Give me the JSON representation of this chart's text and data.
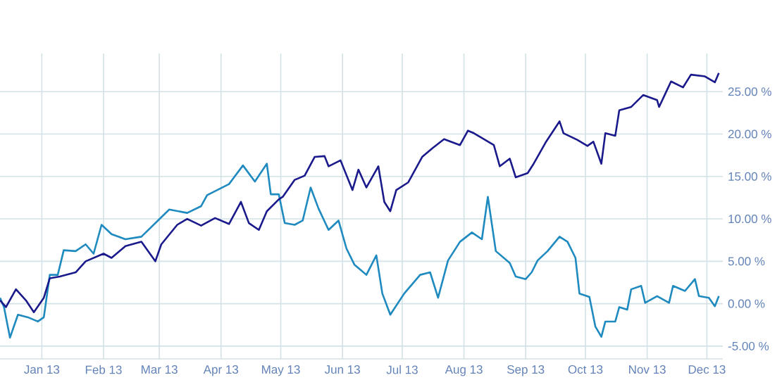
{
  "chart_data": {
    "type": "line",
    "x": [
      "2012-12-11",
      "2012-12-14",
      "2012-12-19",
      "2012-12-24",
      "2012-12-28",
      "2013-01-02",
      "2013-01-05",
      "2013-01-10",
      "2013-01-18",
      "2013-01-23",
      "2013-02-01",
      "2013-02-05",
      "2013-02-12",
      "2013-02-20",
      "2013-02-27",
      "2013-03-02",
      "2013-03-10",
      "2013-03-15",
      "2013-03-22",
      "2013-03-29",
      "2013-04-05",
      "2013-04-11",
      "2013-04-15",
      "2013-04-20",
      "2013-04-24",
      "2013-04-30",
      "2013-05-02",
      "2013-05-08",
      "2013-05-13",
      "2013-05-18",
      "2013-05-23",
      "2013-05-25",
      "2013-05-31",
      "2013-06-06",
      "2013-06-09",
      "2013-06-13",
      "2013-06-19",
      "2013-06-22",
      "2013-06-25",
      "2013-06-28",
      "2013-07-04",
      "2013-07-11",
      "2013-07-16",
      "2013-07-22",
      "2013-07-30",
      "2013-08-03",
      "2013-08-06",
      "2013-08-16",
      "2013-08-19",
      "2013-08-24",
      "2013-08-27",
      "2013-09-02",
      "2013-09-05",
      "2013-09-11",
      "2013-09-18",
      "2013-09-20",
      "2013-09-27",
      "2013-10-02",
      "2013-10-05",
      "2013-10-09",
      "2013-10-11",
      "2013-10-16",
      "2013-10-18",
      "2013-10-24",
      "2013-10-30",
      "2013-11-06",
      "2013-11-07",
      "2013-11-10",
      "2013-11-13",
      "2013-11-19",
      "2013-11-23",
      "2013-11-30",
      "2013-12-05",
      "2013-12-07"
    ],
    "series": [
      {
        "color": "#1f8ac0",
        "x": [
          "2012-12-11",
          "2012-12-13",
          "2012-12-16",
          "2012-12-20",
          "2012-12-25",
          "2012-12-30",
          "2013-01-02",
          "2013-01-05",
          "2013-01-09",
          "2013-01-12",
          "2013-01-18",
          "2013-01-23",
          "2013-01-27",
          "2013-01-31",
          "2013-02-05",
          "2013-02-12",
          "2013-02-20",
          "2013-02-27",
          "2013-03-06",
          "2013-03-15",
          "2013-03-22",
          "2013-03-25",
          "2013-04-05",
          "2013-04-12",
          "2013-04-18",
          "2013-04-24",
          "2013-04-26",
          "2013-04-30",
          "2013-05-03",
          "2013-05-08",
          "2013-05-12",
          "2013-05-16",
          "2013-05-20",
          "2013-05-25",
          "2013-05-30",
          "2013-06-03",
          "2013-06-07",
          "2013-06-13",
          "2013-06-18",
          "2013-06-21",
          "2013-06-25",
          "2013-07-02",
          "2013-07-10",
          "2013-07-15",
          "2013-07-19",
          "2013-07-24",
          "2013-07-30",
          "2013-08-05",
          "2013-08-10",
          "2013-08-13",
          "2013-08-17",
          "2013-08-24",
          "2013-08-27",
          "2013-09-01",
          "2013-09-04",
          "2013-09-07",
          "2013-09-12",
          "2013-09-18",
          "2013-09-22",
          "2013-09-26",
          "2013-09-28",
          "2013-10-03",
          "2013-10-06",
          "2013-10-09",
          "2013-10-11",
          "2013-10-16",
          "2013-10-18",
          "2013-10-22",
          "2013-10-24",
          "2013-10-29",
          "2013-10-31",
          "2013-11-06",
          "2013-11-12",
          "2013-11-14",
          "2013-11-20",
          "2013-11-25",
          "2013-11-27",
          "2013-12-02",
          "2013-12-05",
          "2013-12-07"
        ],
        "values": [
          0.7,
          -0.4,
          -4.0,
          -1.3,
          -1.6,
          -2.1,
          -1.6,
          3.4,
          3.4,
          6.3,
          6.2,
          7.0,
          5.9,
          9.3,
          8.2,
          7.6,
          7.9,
          9.5,
          11.1,
          10.7,
          11.5,
          12.8,
          14.1,
          16.3,
          14.4,
          16.5,
          12.9,
          12.9,
          9.5,
          9.3,
          9.8,
          13.7,
          11.2,
          8.7,
          9.8,
          6.5,
          4.6,
          3.4,
          5.7,
          1.2,
          -1.3,
          1.2,
          3.4,
          3.7,
          0.7,
          5.1,
          7.3,
          8.4,
          7.6,
          12.6,
          6.2,
          4.8,
          3.2,
          2.9,
          3.7,
          5.1,
          6.2,
          7.9,
          7.3,
          5.4,
          1.2,
          0.8,
          -2.7,
          -3.9,
          -2.1,
          -2.1,
          -0.4,
          -0.7,
          1.7,
          2.1,
          0.1,
          0.9,
          0.1,
          2.1,
          1.5,
          2.9,
          0.9,
          0.7,
          -0.3,
          0.9
        ]
      },
      {
        "color": "#1a1a8c",
        "values": [
          0.4,
          -0.4,
          1.7,
          0.4,
          -1.0,
          0.7,
          3.0,
          3.2,
          3.7,
          5.0,
          5.9,
          5.4,
          6.8,
          7.3,
          5.0,
          7.0,
          9.3,
          10.0,
          9.2,
          10.1,
          9.4,
          12.0,
          9.5,
          8.7,
          10.9,
          12.3,
          12.6,
          14.6,
          15.1,
          17.3,
          17.4,
          16.2,
          16.9,
          13.4,
          15.8,
          13.7,
          16.2,
          12.0,
          10.9,
          13.4,
          14.3,
          17.3,
          18.3,
          19.4,
          18.7,
          20.4,
          20.1,
          18.7,
          16.2,
          17.1,
          14.9,
          15.4,
          16.5,
          19.0,
          21.5,
          20.1,
          19.3,
          18.6,
          19.1,
          16.5,
          20.1,
          19.8,
          22.8,
          23.2,
          24.6,
          24.0,
          23.2,
          24.7,
          26.2,
          25.5,
          27.0,
          26.8,
          26.1,
          27.2
        ]
      }
    ],
    "xlim": [
      "2012-12-11",
      "2013-12-09"
    ],
    "xticks": [
      {
        "value": "2013-01-01",
        "label": "Jan 13"
      },
      {
        "value": "2013-02-01",
        "label": "Feb 13"
      },
      {
        "value": "2013-03-01",
        "label": "Mar 13"
      },
      {
        "value": "2013-04-01",
        "label": "Apr 13"
      },
      {
        "value": "2013-05-01",
        "label": "May 13"
      },
      {
        "value": "2013-06-01",
        "label": "Jun 13"
      },
      {
        "value": "2013-07-01",
        "label": "Jul 13"
      },
      {
        "value": "2013-08-01",
        "label": "Aug 13"
      },
      {
        "value": "2013-09-01",
        "label": "Sep 13"
      },
      {
        "value": "2013-10-01",
        "label": "Oct 13"
      },
      {
        "value": "2013-11-01",
        "label": "Nov 13"
      },
      {
        "value": "2013-12-01",
        "label": "Dec 13"
      }
    ],
    "ylim": [
      -6.5,
      29.5
    ],
    "yticks": [
      {
        "value": -5,
        "label": "-5.00 %"
      },
      {
        "value": 0,
        "label": "0.00 %"
      },
      {
        "value": 5,
        "label": "5.00 %"
      },
      {
        "value": 10,
        "label": "10.00 %"
      },
      {
        "value": 15,
        "label": "15.00 %"
      },
      {
        "value": 20,
        "label": "20.00 %"
      },
      {
        "value": 25,
        "label": "25.00 %"
      }
    ],
    "grid": true,
    "marker": "none",
    "line_style": "solid"
  }
}
